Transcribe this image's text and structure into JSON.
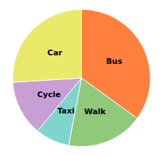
{
  "chart_data": {
    "type": "pie",
    "categories": [
      "Bus",
      "Walk",
      "Taxi",
      "Cycle",
      "Car"
    ],
    "values": [
      35,
      18,
      8,
      13,
      26
    ],
    "colors": [
      "#FF7F3F",
      "#90C97A",
      "#7FD4CC",
      "#C79FD4",
      "#EAEA6A"
    ]
  }
}
